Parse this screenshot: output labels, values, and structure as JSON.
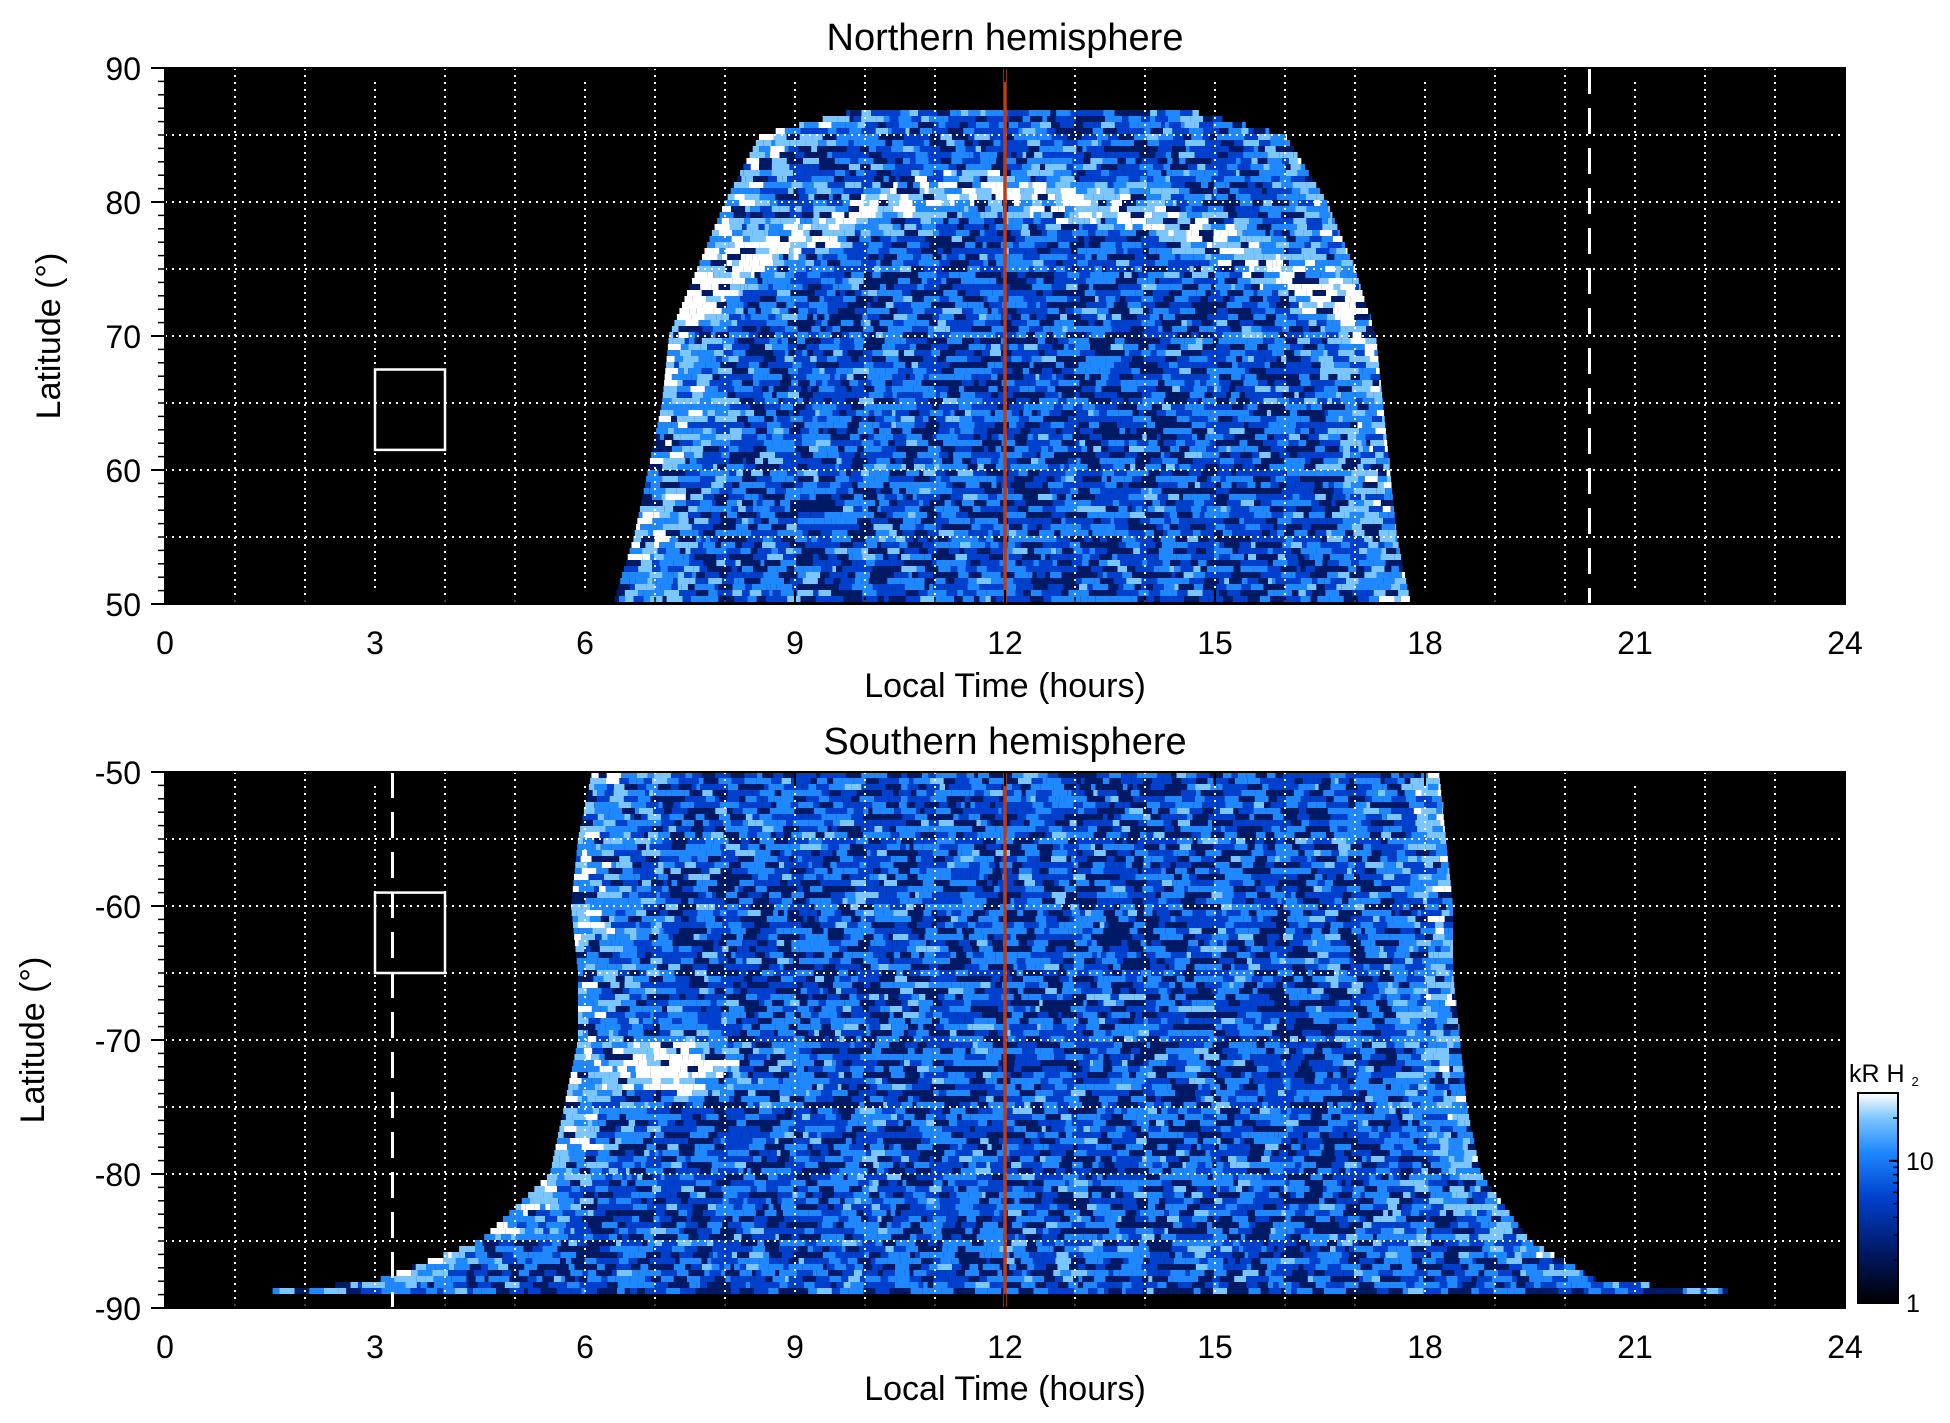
{
  "chart_data": [
    {
      "type": "heatmap",
      "title": "Northern hemisphere",
      "xlabel": "Local Time (hours)",
      "ylabel": "Latitude (°)",
      "xlim": [
        0,
        24
      ],
      "ylim": [
        50,
        90
      ],
      "xticks": [
        "0",
        "3",
        "6",
        "9",
        "12",
        "15",
        "18",
        "21",
        "24"
      ],
      "yticks": [
        "50",
        "60",
        "70",
        "80",
        "90"
      ],
      "grid": true,
      "background_color": "#000000",
      "grid_color": "#ffffff",
      "noon_line": {
        "x": 12,
        "color": "#c23a14"
      },
      "dashed_line": {
        "x": 20.35,
        "y_from": 50,
        "y_to": 90
      },
      "box": {
        "x": [
          3,
          4
        ],
        "y": [
          61.5,
          67.5
        ]
      },
      "emission_extent": {
        "lat_levels": [
          50,
          55,
          60,
          65,
          70,
          75,
          80,
          85,
          87
        ],
        "lt_start": [
          6.4,
          6.7,
          6.9,
          7.1,
          7.2,
          7.6,
          8.0,
          8.5,
          10.0
        ],
        "lt_end": [
          17.8,
          17.6,
          17.5,
          17.4,
          17.3,
          17.0,
          16.6,
          16.0,
          14.5
        ]
      },
      "main_oval": [
        {
          "lt": 7.0,
          "lat": 71.5
        },
        {
          "lt": 8.0,
          "lat": 74.5
        },
        {
          "lt": 9.0,
          "lat": 77.5
        },
        {
          "lt": 10.0,
          "lat": 79.5
        },
        {
          "lt": 11.0,
          "lat": 80.5
        },
        {
          "lt": 12.0,
          "lat": 80.5
        },
        {
          "lt": 13.0,
          "lat": 80.0
        },
        {
          "lt": 14.0,
          "lat": 79.0
        },
        {
          "lt": 15.0,
          "lat": 77.0
        },
        {
          "lt": 16.0,
          "lat": 74.5
        },
        {
          "lt": 17.0,
          "lat": 71.5
        }
      ]
    },
    {
      "type": "heatmap",
      "title": "Southern hemisphere",
      "xlabel": "Local Time (hours)",
      "ylabel": "Latitude (°)",
      "xlim": [
        0,
        24
      ],
      "ylim": [
        -90,
        -50
      ],
      "xticks": [
        "0",
        "3",
        "6",
        "9",
        "12",
        "15",
        "18",
        "21",
        "24"
      ],
      "yticks": [
        "-90",
        "-80",
        "-70",
        "-60",
        "-50"
      ],
      "grid": true,
      "background_color": "#000000",
      "grid_color": "#ffffff",
      "noon_line": {
        "x": 12,
        "color": "#c23a14"
      },
      "dashed_line": {
        "x": 3.25,
        "y_from": -90,
        "y_to": -50
      },
      "box": {
        "x": [
          3,
          4
        ],
        "y": [
          -65,
          -59
        ]
      },
      "emission_extent": {
        "lat_levels": [
          -50,
          -55,
          -60,
          -65,
          -70,
          -75,
          -80,
          -85,
          -88,
          -89
        ],
        "lt_start": [
          6.1,
          5.9,
          5.8,
          5.9,
          5.9,
          5.7,
          5.5,
          4.5,
          3.0,
          1.0
        ],
        "lt_end": [
          18.2,
          18.3,
          18.4,
          18.4,
          18.5,
          18.6,
          18.8,
          19.5,
          20.5,
          23.0
        ]
      },
      "bright_spot": {
        "lt": 7.2,
        "lat": -72
      }
    }
  ],
  "colorbar": {
    "title_main": "kR H",
    "title_sub": "2",
    "scale": "log",
    "range": [
      1,
      30
    ],
    "ticks": [
      "1",
      "10"
    ],
    "colors": [
      "#000000",
      "#001a66",
      "#0040cc",
      "#1f88ff",
      "#7cc6ff",
      "#ffffff"
    ]
  }
}
